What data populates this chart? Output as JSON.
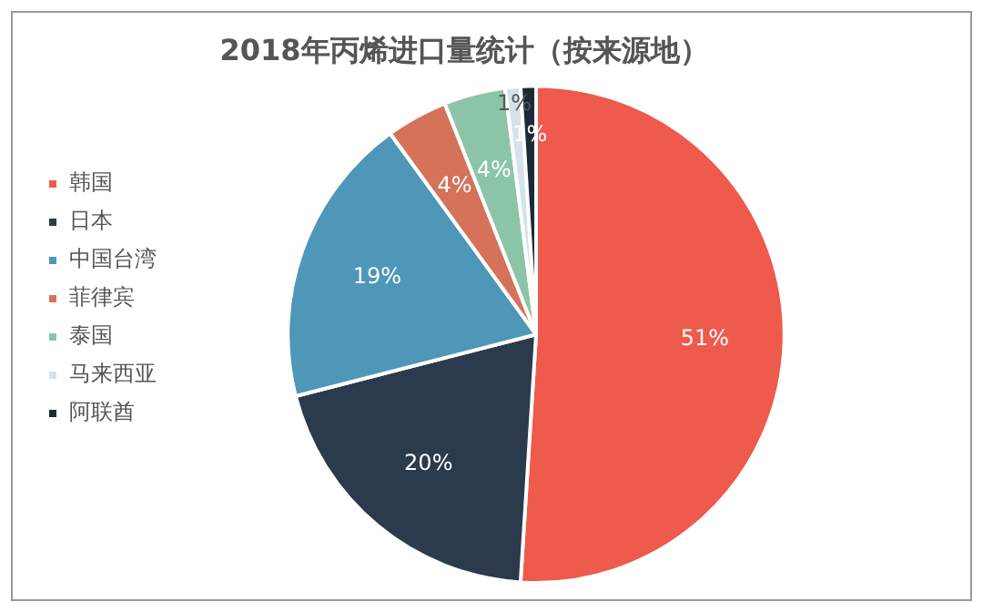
{
  "chart_data": {
    "type": "pie",
    "title": "2018年丙烯进口量统计（按来源地）",
    "categories": [
      "韩国",
      "日本",
      "中国台湾",
      "菲律宾",
      "泰国",
      "马来西亚",
      "阿联酋"
    ],
    "values": [
      51,
      20,
      19,
      4,
      4,
      1,
      1
    ],
    "colors": [
      "#ee5a4c",
      "#2b3a4c",
      "#4f97b8",
      "#d4735a",
      "#8cc4a8",
      "#d5e2ea",
      "#1e2937"
    ],
    "value_labels": [
      "51%",
      "20%",
      "19%",
      "4%",
      "4%",
      "1%",
      "1%"
    ],
    "legend": "left"
  }
}
